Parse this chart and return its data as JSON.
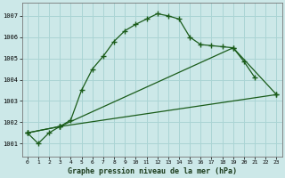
{
  "xlabel": "Graphe pression niveau de la mer (hPa)",
  "bg_color": "#cce8e8",
  "grid_color": "#aad4d4",
  "line_color": "#1a5c1a",
  "x_ticks": [
    0,
    1,
    2,
    3,
    4,
    5,
    6,
    7,
    8,
    9,
    10,
    11,
    12,
    13,
    14,
    15,
    16,
    17,
    18,
    19,
    20,
    21,
    22,
    23
  ],
  "ylim": [
    1000.4,
    1007.6
  ],
  "yticks": [
    1001,
    1002,
    1003,
    1004,
    1005,
    1006,
    1007
  ],
  "series1_x": [
    0,
    1,
    2,
    3,
    4,
    5,
    6,
    7,
    8,
    9,
    10,
    11,
    12,
    13,
    14,
    15,
    16,
    17,
    18,
    19,
    20,
    21
  ],
  "series1_y": [
    1001.5,
    1001.0,
    1001.5,
    1001.8,
    1002.1,
    1003.5,
    1004.5,
    1005.1,
    1005.8,
    1006.3,
    1006.6,
    1006.85,
    1007.1,
    1007.0,
    1006.85,
    1006.0,
    1005.65,
    1005.6,
    1005.55,
    1005.5,
    1004.85,
    1004.1
  ],
  "line2_x": [
    0,
    3,
    19,
    23
  ],
  "line2_y": [
    1001.5,
    1001.8,
    1005.5,
    1003.3
  ],
  "line3_x": [
    0,
    3,
    23
  ],
  "line3_y": [
    1001.5,
    1001.8,
    1003.3
  ]
}
